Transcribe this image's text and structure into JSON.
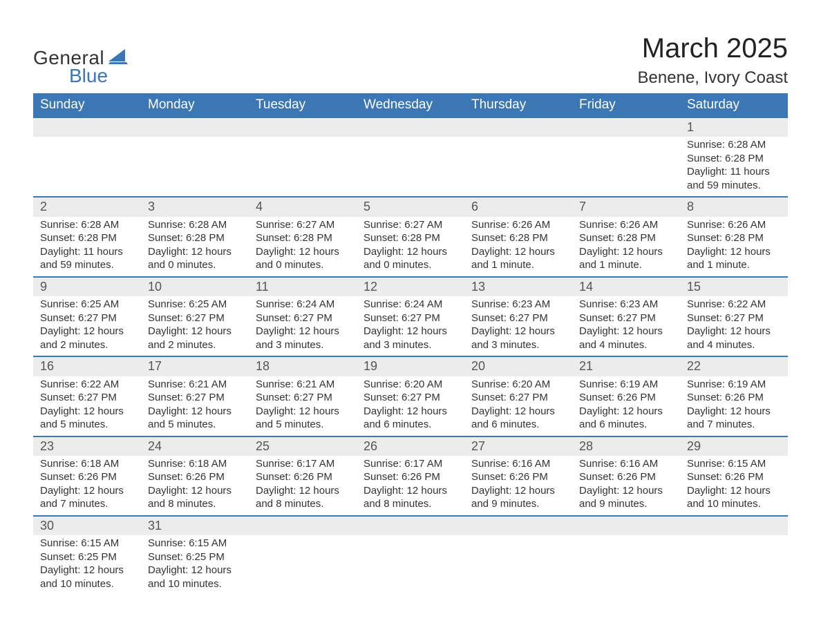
{
  "logo": {
    "word1": "General",
    "word2": "Blue",
    "accent_color": "#3b76b5"
  },
  "header": {
    "month_title": "March 2025",
    "location": "Benene, Ivory Coast"
  },
  "style": {
    "header_bg": "#3b76b5",
    "header_text": "#ffffff",
    "daynum_bg": "#ececec",
    "row_divider": "#3b76b5",
    "body_text": "#333333",
    "title_fontsize": 40,
    "location_fontsize": 24,
    "weekday_fontsize": 19,
    "cell_fontsize": 15
  },
  "weekdays": [
    "Sunday",
    "Monday",
    "Tuesday",
    "Wednesday",
    "Thursday",
    "Friday",
    "Saturday"
  ],
  "weeks": [
    [
      null,
      null,
      null,
      null,
      null,
      null,
      {
        "n": "1",
        "sr": "Sunrise: 6:28 AM",
        "ss": "Sunset: 6:28 PM",
        "dl": "Daylight: 11 hours and 59 minutes."
      }
    ],
    [
      {
        "n": "2",
        "sr": "Sunrise: 6:28 AM",
        "ss": "Sunset: 6:28 PM",
        "dl": "Daylight: 11 hours and 59 minutes."
      },
      {
        "n": "3",
        "sr": "Sunrise: 6:28 AM",
        "ss": "Sunset: 6:28 PM",
        "dl": "Daylight: 12 hours and 0 minutes."
      },
      {
        "n": "4",
        "sr": "Sunrise: 6:27 AM",
        "ss": "Sunset: 6:28 PM",
        "dl": "Daylight: 12 hours and 0 minutes."
      },
      {
        "n": "5",
        "sr": "Sunrise: 6:27 AM",
        "ss": "Sunset: 6:28 PM",
        "dl": "Daylight: 12 hours and 0 minutes."
      },
      {
        "n": "6",
        "sr": "Sunrise: 6:26 AM",
        "ss": "Sunset: 6:28 PM",
        "dl": "Daylight: 12 hours and 1 minute."
      },
      {
        "n": "7",
        "sr": "Sunrise: 6:26 AM",
        "ss": "Sunset: 6:28 PM",
        "dl": "Daylight: 12 hours and 1 minute."
      },
      {
        "n": "8",
        "sr": "Sunrise: 6:26 AM",
        "ss": "Sunset: 6:28 PM",
        "dl": "Daylight: 12 hours and 1 minute."
      }
    ],
    [
      {
        "n": "9",
        "sr": "Sunrise: 6:25 AM",
        "ss": "Sunset: 6:27 PM",
        "dl": "Daylight: 12 hours and 2 minutes."
      },
      {
        "n": "10",
        "sr": "Sunrise: 6:25 AM",
        "ss": "Sunset: 6:27 PM",
        "dl": "Daylight: 12 hours and 2 minutes."
      },
      {
        "n": "11",
        "sr": "Sunrise: 6:24 AM",
        "ss": "Sunset: 6:27 PM",
        "dl": "Daylight: 12 hours and 3 minutes."
      },
      {
        "n": "12",
        "sr": "Sunrise: 6:24 AM",
        "ss": "Sunset: 6:27 PM",
        "dl": "Daylight: 12 hours and 3 minutes."
      },
      {
        "n": "13",
        "sr": "Sunrise: 6:23 AM",
        "ss": "Sunset: 6:27 PM",
        "dl": "Daylight: 12 hours and 3 minutes."
      },
      {
        "n": "14",
        "sr": "Sunrise: 6:23 AM",
        "ss": "Sunset: 6:27 PM",
        "dl": "Daylight: 12 hours and 4 minutes."
      },
      {
        "n": "15",
        "sr": "Sunrise: 6:22 AM",
        "ss": "Sunset: 6:27 PM",
        "dl": "Daylight: 12 hours and 4 minutes."
      }
    ],
    [
      {
        "n": "16",
        "sr": "Sunrise: 6:22 AM",
        "ss": "Sunset: 6:27 PM",
        "dl": "Daylight: 12 hours and 5 minutes."
      },
      {
        "n": "17",
        "sr": "Sunrise: 6:21 AM",
        "ss": "Sunset: 6:27 PM",
        "dl": "Daylight: 12 hours and 5 minutes."
      },
      {
        "n": "18",
        "sr": "Sunrise: 6:21 AM",
        "ss": "Sunset: 6:27 PM",
        "dl": "Daylight: 12 hours and 5 minutes."
      },
      {
        "n": "19",
        "sr": "Sunrise: 6:20 AM",
        "ss": "Sunset: 6:27 PM",
        "dl": "Daylight: 12 hours and 6 minutes."
      },
      {
        "n": "20",
        "sr": "Sunrise: 6:20 AM",
        "ss": "Sunset: 6:27 PM",
        "dl": "Daylight: 12 hours and 6 minutes."
      },
      {
        "n": "21",
        "sr": "Sunrise: 6:19 AM",
        "ss": "Sunset: 6:26 PM",
        "dl": "Daylight: 12 hours and 6 minutes."
      },
      {
        "n": "22",
        "sr": "Sunrise: 6:19 AM",
        "ss": "Sunset: 6:26 PM",
        "dl": "Daylight: 12 hours and 7 minutes."
      }
    ],
    [
      {
        "n": "23",
        "sr": "Sunrise: 6:18 AM",
        "ss": "Sunset: 6:26 PM",
        "dl": "Daylight: 12 hours and 7 minutes."
      },
      {
        "n": "24",
        "sr": "Sunrise: 6:18 AM",
        "ss": "Sunset: 6:26 PM",
        "dl": "Daylight: 12 hours and 8 minutes."
      },
      {
        "n": "25",
        "sr": "Sunrise: 6:17 AM",
        "ss": "Sunset: 6:26 PM",
        "dl": "Daylight: 12 hours and 8 minutes."
      },
      {
        "n": "26",
        "sr": "Sunrise: 6:17 AM",
        "ss": "Sunset: 6:26 PM",
        "dl": "Daylight: 12 hours and 8 minutes."
      },
      {
        "n": "27",
        "sr": "Sunrise: 6:16 AM",
        "ss": "Sunset: 6:26 PM",
        "dl": "Daylight: 12 hours and 9 minutes."
      },
      {
        "n": "28",
        "sr": "Sunrise: 6:16 AM",
        "ss": "Sunset: 6:26 PM",
        "dl": "Daylight: 12 hours and 9 minutes."
      },
      {
        "n": "29",
        "sr": "Sunrise: 6:15 AM",
        "ss": "Sunset: 6:26 PM",
        "dl": "Daylight: 12 hours and 10 minutes."
      }
    ],
    [
      {
        "n": "30",
        "sr": "Sunrise: 6:15 AM",
        "ss": "Sunset: 6:25 PM",
        "dl": "Daylight: 12 hours and 10 minutes."
      },
      {
        "n": "31",
        "sr": "Sunrise: 6:15 AM",
        "ss": "Sunset: 6:25 PM",
        "dl": "Daylight: 12 hours and 10 minutes."
      },
      null,
      null,
      null,
      null,
      null
    ]
  ]
}
